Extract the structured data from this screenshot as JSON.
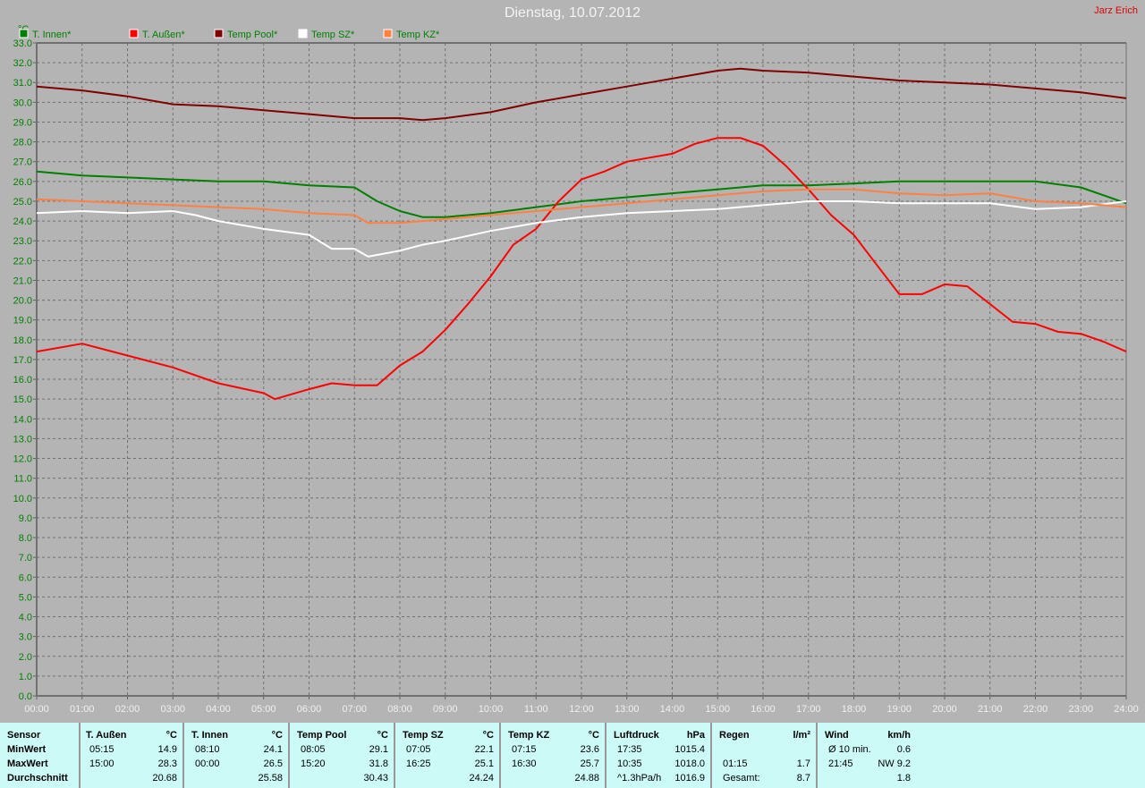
{
  "header": {
    "title": "Dienstag, 10.07.2012",
    "author": "Jarz Erich"
  },
  "chart_data": {
    "type": "line",
    "title": "Dienstag, 10.07.2012",
    "ylabel": "°C",
    "ylim": [
      0,
      33
    ],
    "xlim": [
      0,
      24
    ],
    "grid": true,
    "legend_position": "top-left",
    "yticks": [
      "0.0",
      "1.0",
      "2.0",
      "3.0",
      "4.0",
      "5.0",
      "6.0",
      "7.0",
      "8.0",
      "9.0",
      "10.0",
      "11.0",
      "12.0",
      "13.0",
      "14.0",
      "15.0",
      "16.0",
      "17.0",
      "18.0",
      "19.0",
      "20.0",
      "21.0",
      "22.0",
      "23.0",
      "24.0",
      "25.0",
      "26.0",
      "27.0",
      "28.0",
      "29.0",
      "30.0",
      "31.0",
      "32.0",
      "33.0"
    ],
    "xticks": [
      "00:00",
      "01:00",
      "02:00",
      "03:00",
      "04:00",
      "05:00",
      "06:00",
      "07:00",
      "08:00",
      "09:00",
      "10:00",
      "11:00",
      "12:00",
      "13:00",
      "14:00",
      "15:00",
      "16:00",
      "17:00",
      "18:00",
      "19:00",
      "20:00",
      "21:00",
      "22:00",
      "23:00",
      "24:00"
    ],
    "series": [
      {
        "name": "T. Innen*",
        "color": "#008000",
        "x": [
          0,
          1,
          2,
          3,
          4,
          5,
          6,
          7,
          7.5,
          8,
          8.5,
          9,
          10,
          11,
          12,
          13,
          14,
          15,
          16,
          17,
          18,
          19,
          20,
          21,
          22,
          23,
          24
        ],
        "y": [
          26.5,
          26.3,
          26.2,
          26.1,
          26.0,
          26.0,
          25.8,
          25.7,
          25.0,
          24.5,
          24.2,
          24.2,
          24.4,
          24.7,
          25.0,
          25.2,
          25.4,
          25.6,
          25.8,
          25.8,
          25.9,
          26.0,
          26.0,
          26.0,
          26.0,
          25.7,
          24.9
        ]
      },
      {
        "name": "T. Außen*",
        "color": "#ff0000",
        "x": [
          0,
          1,
          2,
          3,
          4,
          5,
          5.25,
          6,
          6.5,
          7,
          7.5,
          8,
          8.5,
          9,
          9.5,
          10,
          10.5,
          11,
          11.5,
          12,
          12.5,
          13,
          14,
          14.5,
          15,
          15.5,
          16,
          16.5,
          17,
          17.5,
          18,
          18.5,
          19,
          19.5,
          20,
          20.5,
          21,
          21.5,
          22,
          22.5,
          23,
          23.5,
          24
        ],
        "y": [
          17.4,
          17.8,
          17.2,
          16.6,
          15.8,
          15.3,
          15.0,
          15.5,
          15.8,
          15.7,
          15.7,
          16.7,
          17.4,
          18.5,
          19.8,
          21.2,
          22.8,
          23.6,
          25.0,
          26.1,
          26.5,
          27.0,
          27.4,
          27.9,
          28.2,
          28.2,
          27.8,
          26.8,
          25.6,
          24.3,
          23.3,
          21.8,
          20.3,
          20.3,
          20.8,
          20.7,
          19.8,
          18.9,
          18.8,
          18.4,
          18.3,
          17.9,
          17.4
        ]
      },
      {
        "name": "Temp Pool*",
        "color": "#800000",
        "x": [
          0,
          1,
          2,
          3,
          4,
          5,
          6,
          7,
          8,
          8.5,
          9,
          10,
          11,
          12,
          13,
          14,
          15,
          15.5,
          16,
          17,
          18,
          19,
          20,
          21,
          22,
          23,
          24
        ],
        "y": [
          30.8,
          30.6,
          30.3,
          29.9,
          29.8,
          29.6,
          29.4,
          29.2,
          29.2,
          29.1,
          29.2,
          29.5,
          30.0,
          30.4,
          30.8,
          31.2,
          31.6,
          31.7,
          31.6,
          31.5,
          31.3,
          31.1,
          31.0,
          30.9,
          30.7,
          30.5,
          30.2
        ]
      },
      {
        "name": "Temp SZ*",
        "color": "#ffffff",
        "x": [
          0,
          1,
          2,
          3,
          3.5,
          4,
          5,
          6,
          6.5,
          7,
          7.3,
          8,
          8.5,
          9,
          10,
          11,
          12,
          13,
          14,
          15,
          16,
          17,
          18,
          19,
          20,
          21,
          22,
          23,
          24
        ],
        "y": [
          24.4,
          24.5,
          24.4,
          24.5,
          24.3,
          24.0,
          23.6,
          23.3,
          22.6,
          22.6,
          22.2,
          22.5,
          22.8,
          23.0,
          23.5,
          23.9,
          24.2,
          24.4,
          24.5,
          24.6,
          24.8,
          25.0,
          25.0,
          24.9,
          24.9,
          24.9,
          24.6,
          24.7,
          25.0
        ]
      },
      {
        "name": "Temp KZ*",
        "color": "#ff8040",
        "x": [
          0,
          1,
          2,
          3,
          4,
          5,
          6,
          7,
          7.3,
          8,
          9,
          10,
          11,
          12,
          13,
          14,
          15,
          16,
          17,
          18,
          19,
          20,
          21,
          22,
          23,
          24
        ],
        "y": [
          25.1,
          25.0,
          24.9,
          24.8,
          24.7,
          24.6,
          24.4,
          24.3,
          23.9,
          23.9,
          24.1,
          24.3,
          24.5,
          24.7,
          24.9,
          25.1,
          25.3,
          25.5,
          25.6,
          25.6,
          25.4,
          25.3,
          25.4,
          25.0,
          24.9,
          24.7
        ]
      }
    ]
  },
  "table": {
    "sensor": {
      "header": "Sensor",
      "rows": [
        "MinWert",
        "MaxWert",
        "Durchschnitt"
      ]
    },
    "groups": [
      {
        "name": "T. Außen",
        "unit": "°C",
        "min": [
          "05:15",
          "14.9"
        ],
        "max": [
          "15:00",
          "28.3"
        ],
        "avg": [
          "",
          "20.68"
        ]
      },
      {
        "name": "T. Innen",
        "unit": "°C",
        "min": [
          "08:10",
          "24.1"
        ],
        "max": [
          "00:00",
          "26.5"
        ],
        "avg": [
          "",
          "25.58"
        ]
      },
      {
        "name": "Temp Pool",
        "unit": "°C",
        "min": [
          "08:05",
          "29.1"
        ],
        "max": [
          "15:20",
          "31.8"
        ],
        "avg": [
          "",
          "30.43"
        ]
      },
      {
        "name": "Temp SZ",
        "unit": "°C",
        "min": [
          "07:05",
          "22.1"
        ],
        "max": [
          "16:25",
          "25.1"
        ],
        "avg": [
          "",
          "24.24"
        ]
      },
      {
        "name": "Temp KZ",
        "unit": "°C",
        "min": [
          "07:15",
          "23.6"
        ],
        "max": [
          "16:30",
          "25.7"
        ],
        "avg": [
          "",
          "24.88"
        ]
      },
      {
        "name": "Luftdruck",
        "unit": "hPa",
        "min": [
          "17:35",
          "1015.4"
        ],
        "max": [
          "10:35",
          "1018.0"
        ],
        "avg": [
          "^1.3hPa/h",
          "1016.9"
        ]
      },
      {
        "name": "Regen",
        "unit": "l/m²",
        "min": [
          "",
          ""
        ],
        "max": [
          "01:15",
          "1.7"
        ],
        "avg": [
          "Gesamt:",
          "8.7"
        ]
      },
      {
        "name": "Wind",
        "unit": "km/h",
        "min": [
          "Ø 10 min.",
          "0.6"
        ],
        "max": [
          "21:45",
          "NW 9.2"
        ],
        "avg": [
          "",
          "1.8"
        ]
      }
    ]
  }
}
